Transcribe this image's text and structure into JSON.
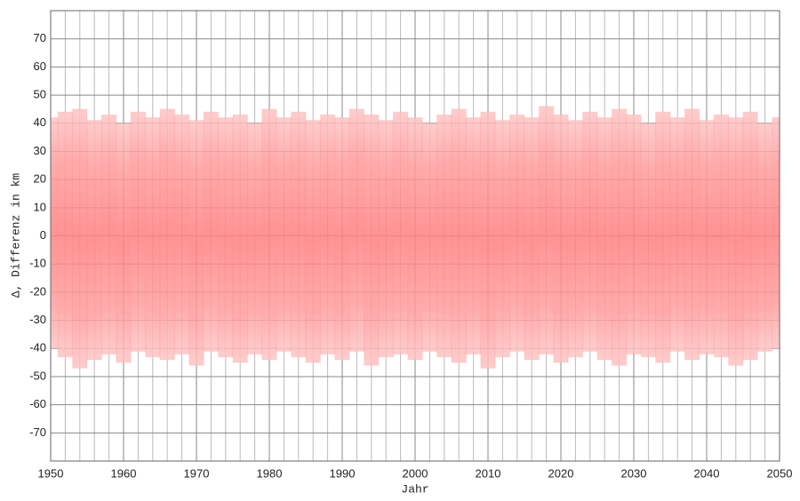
{
  "chart_data": {
    "type": "range",
    "x_label": "Jahr",
    "y_label": "Δ, Differenz in km",
    "x": [
      1950,
      1952,
      1954,
      1956,
      1958,
      1960,
      1962,
      1964,
      1966,
      1968,
      1970,
      1972,
      1974,
      1976,
      1978,
      1980,
      1982,
      1984,
      1986,
      1988,
      1990,
      1992,
      1994,
      1996,
      1998,
      2000,
      2002,
      2004,
      2006,
      2008,
      2010,
      2012,
      2014,
      2016,
      2018,
      2020,
      2022,
      2024,
      2026,
      2028,
      2030,
      2032,
      2034,
      2036,
      2038,
      2040,
      2042,
      2044,
      2046,
      2048,
      2050
    ],
    "upper": [
      42,
      44,
      45,
      41,
      43,
      40,
      44,
      42,
      45,
      43,
      41,
      44,
      42,
      43,
      40,
      45,
      42,
      44,
      41,
      43,
      42,
      45,
      43,
      41,
      44,
      42,
      40,
      43,
      45,
      42,
      44,
      41,
      43,
      42,
      46,
      43,
      41,
      44,
      42,
      45,
      43,
      40,
      44,
      42,
      45,
      41,
      43,
      42,
      44,
      40,
      42
    ],
    "lower": [
      -40,
      -43,
      -47,
      -44,
      -42,
      -45,
      -41,
      -43,
      -44,
      -42,
      -46,
      -41,
      -43,
      -45,
      -42,
      -44,
      -41,
      -43,
      -45,
      -42,
      -44,
      -41,
      -46,
      -43,
      -42,
      -44,
      -41,
      -43,
      -45,
      -42,
      -47,
      -43,
      -41,
      -44,
      -42,
      -45,
      -43,
      -41,
      -44,
      -46,
      -42,
      -43,
      -45,
      -41,
      -44,
      -42,
      -43,
      -46,
      -44,
      -41,
      -40
    ],
    "color": "#ff7070",
    "xlim": [
      1950,
      2050
    ],
    "xticks": [
      1950,
      1960,
      1970,
      1980,
      1990,
      2000,
      2010,
      2020,
      2030,
      2040,
      2050
    ],
    "xminorticks": [
      1952,
      1954,
      1956,
      1958,
      1962,
      1964,
      1966,
      1968,
      1972,
      1974,
      1976,
      1978,
      1982,
      1984,
      1986,
      1988,
      1992,
      1994,
      1996,
      1998,
      2002,
      2004,
      2006,
      2008,
      2012,
      2014,
      2016,
      2018,
      2022,
      2024,
      2026,
      2028,
      2032,
      2034,
      2036,
      2038,
      2042,
      2044,
      2046,
      2048
    ],
    "ylim": [
      -80,
      80
    ],
    "yticks": [
      -70,
      -60,
      -50,
      -40,
      -30,
      -20,
      -10,
      0,
      10,
      20,
      30,
      40,
      50,
      60,
      70
    ],
    "grid": true
  }
}
